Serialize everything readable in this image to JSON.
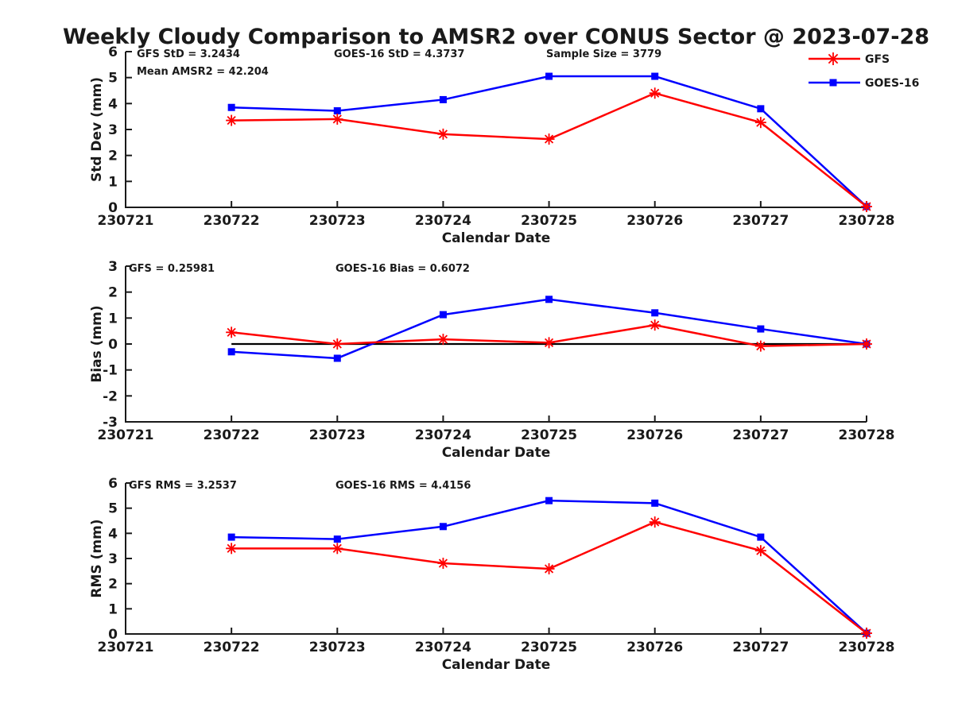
{
  "title": "Weekly Cloudy Comparison to AMSR2 over CONUS Sector @ 2023-07-28",
  "colors": {
    "gfs": "#ff0000",
    "goes16": "#0000ff",
    "axis": "#1a1a1a",
    "zero_line": "#000000"
  },
  "legend": {
    "position": "top-right",
    "entries": [
      {
        "label": "GFS",
        "color": "#ff0000",
        "marker": "asterisk"
      },
      {
        "label": "GOES-16",
        "color": "#0000ff",
        "marker": "square"
      }
    ]
  },
  "chart_data": [
    {
      "type": "line",
      "panel": "std-dev",
      "ylabel": "Std Dev (mm)",
      "xlabel": "Calendar Date",
      "ylim": [
        0,
        6
      ],
      "yticks": [
        0,
        1,
        2,
        3,
        4,
        5,
        6
      ],
      "categories": [
        "230721",
        "230722",
        "230723",
        "230724",
        "230725",
        "230726",
        "230727",
        "230728"
      ],
      "grid": false,
      "annotations": [
        "GFS StD = 3.2434",
        "Mean AMSR2 = 42.204",
        "GOES-16 StD = 4.3737",
        "Sample Size = 3779"
      ],
      "series": [
        {
          "name": "GOES-16",
          "color": "#0000ff",
          "marker": "square",
          "x": [
            "230722",
            "230723",
            "230724",
            "230725",
            "230726",
            "230727",
            "230728"
          ],
          "values": [
            3.85,
            3.72,
            4.15,
            5.05,
            5.05,
            3.8,
            0.03
          ]
        },
        {
          "name": "GFS",
          "color": "#ff0000",
          "marker": "asterisk",
          "x": [
            "230722",
            "230723",
            "230724",
            "230725",
            "230726",
            "230727",
            "230728"
          ],
          "values": [
            3.35,
            3.4,
            2.82,
            2.63,
            4.4,
            3.27,
            0.03
          ]
        }
      ]
    },
    {
      "type": "line",
      "panel": "bias",
      "ylabel": "Bias (mm)",
      "xlabel": "Calendar Date",
      "ylim": [
        -3,
        3
      ],
      "yticks": [
        -3,
        -2,
        -1,
        0,
        1,
        2,
        3
      ],
      "categories": [
        "230721",
        "230722",
        "230723",
        "230724",
        "230725",
        "230726",
        "230727",
        "230728"
      ],
      "grid": false,
      "annotations": [
        "GFS = 0.25981",
        "GOES-16 Bias  = 0.6072"
      ],
      "zero_line": {
        "y": 0,
        "x_start": "230722",
        "x_end": "230728"
      },
      "series": [
        {
          "name": "GOES-16",
          "color": "#0000ff",
          "marker": "square",
          "x": [
            "230722",
            "230723",
            "230724",
            "230725",
            "230726",
            "230727",
            "230728"
          ],
          "values": [
            -0.3,
            -0.55,
            1.13,
            1.72,
            1.2,
            0.58,
            0.0
          ]
        },
        {
          "name": "GFS",
          "color": "#ff0000",
          "marker": "asterisk",
          "x": [
            "230722",
            "230723",
            "230724",
            "230725",
            "230726",
            "230727",
            "230728"
          ],
          "values": [
            0.45,
            0.0,
            0.18,
            0.05,
            0.73,
            -0.08,
            0.0
          ]
        }
      ]
    },
    {
      "type": "line",
      "panel": "rms",
      "ylabel": "RMS (mm)",
      "xlabel": "Calendar Date",
      "ylim": [
        0,
        6
      ],
      "yticks": [
        0,
        1,
        2,
        3,
        4,
        5,
        6
      ],
      "categories": [
        "230721",
        "230722",
        "230723",
        "230724",
        "230725",
        "230726",
        "230727",
        "230728"
      ],
      "grid": false,
      "annotations": [
        "GFS RMS = 3.2537",
        "GOES-16 RMS = 4.4156"
      ],
      "series": [
        {
          "name": "GOES-16",
          "color": "#0000ff",
          "marker": "square",
          "x": [
            "230722",
            "230723",
            "230724",
            "230725",
            "230726",
            "230727",
            "230728"
          ],
          "values": [
            3.85,
            3.77,
            4.27,
            5.3,
            5.2,
            3.85,
            0.03
          ]
        },
        {
          "name": "GFS",
          "color": "#ff0000",
          "marker": "asterisk",
          "x": [
            "230722",
            "230723",
            "230724",
            "230725",
            "230726",
            "230727",
            "230728"
          ],
          "values": [
            3.4,
            3.4,
            2.81,
            2.59,
            4.45,
            3.31,
            0.03
          ]
        }
      ]
    }
  ]
}
